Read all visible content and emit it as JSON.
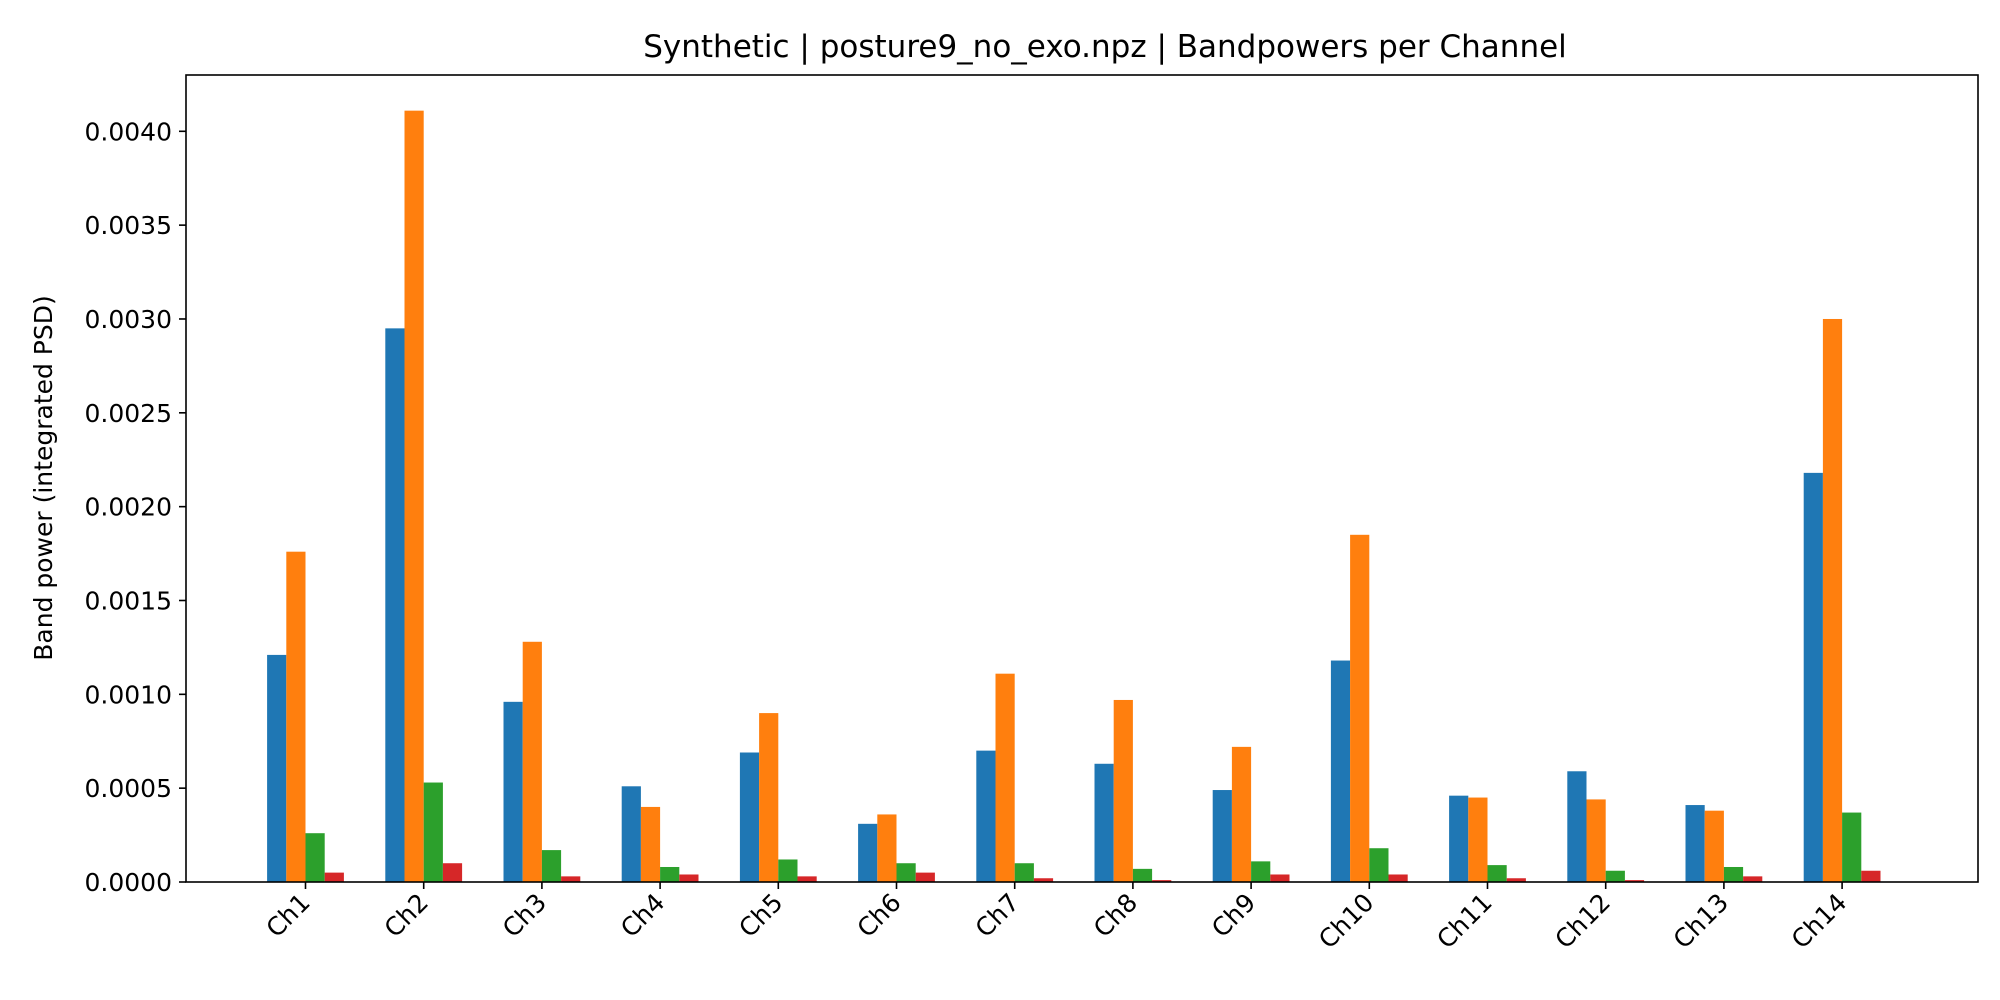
{
  "chart_data": {
    "type": "bar",
    "title": "Synthetic | posture9_no_exo.npz | Bandpowers per Channel",
    "xlabel": "",
    "ylabel": "Band power (integrated PSD)",
    "ylim": [
      0,
      0.0043
    ],
    "yticks": [
      "0.0000",
      "0.0005",
      "0.0010",
      "0.0015",
      "0.0020",
      "0.0025",
      "0.0030",
      "0.0035",
      "0.0040"
    ],
    "categories": [
      "Ch1",
      "Ch2",
      "Ch3",
      "Ch4",
      "Ch5",
      "Ch6",
      "Ch7",
      "Ch8",
      "Ch9",
      "Ch10",
      "Ch11",
      "Ch12",
      "Ch13",
      "Ch14"
    ],
    "grid": false,
    "legend": "none",
    "series": [
      {
        "color": "#1f77b4",
        "values": [
          0.00121,
          0.00295,
          0.00096,
          0.00051,
          0.00069,
          0.00031,
          0.0007,
          0.00063,
          0.00049,
          0.00118,
          0.00046,
          0.00059,
          0.00041,
          0.00218
        ]
      },
      {
        "color": "#ff7f0e",
        "values": [
          0.00176,
          0.00411,
          0.00128,
          0.0004,
          0.0009,
          0.00036,
          0.00111,
          0.00097,
          0.00072,
          0.00185,
          0.00045,
          0.00044,
          0.00038,
          0.003
        ]
      },
      {
        "color": "#2ca02c",
        "values": [
          0.00026,
          0.00053,
          0.00017,
          8e-05,
          0.00012,
          0.0001,
          0.0001,
          7e-05,
          0.00011,
          0.00018,
          9e-05,
          6e-05,
          8e-05,
          0.00037
        ]
      },
      {
        "color": "#d62728",
        "values": [
          5e-05,
          0.0001,
          3e-05,
          4e-05,
          3e-05,
          5e-05,
          2e-05,
          1e-05,
          4e-05,
          4e-05,
          2e-05,
          1e-05,
          3e-05,
          6e-05
        ]
      }
    ]
  }
}
